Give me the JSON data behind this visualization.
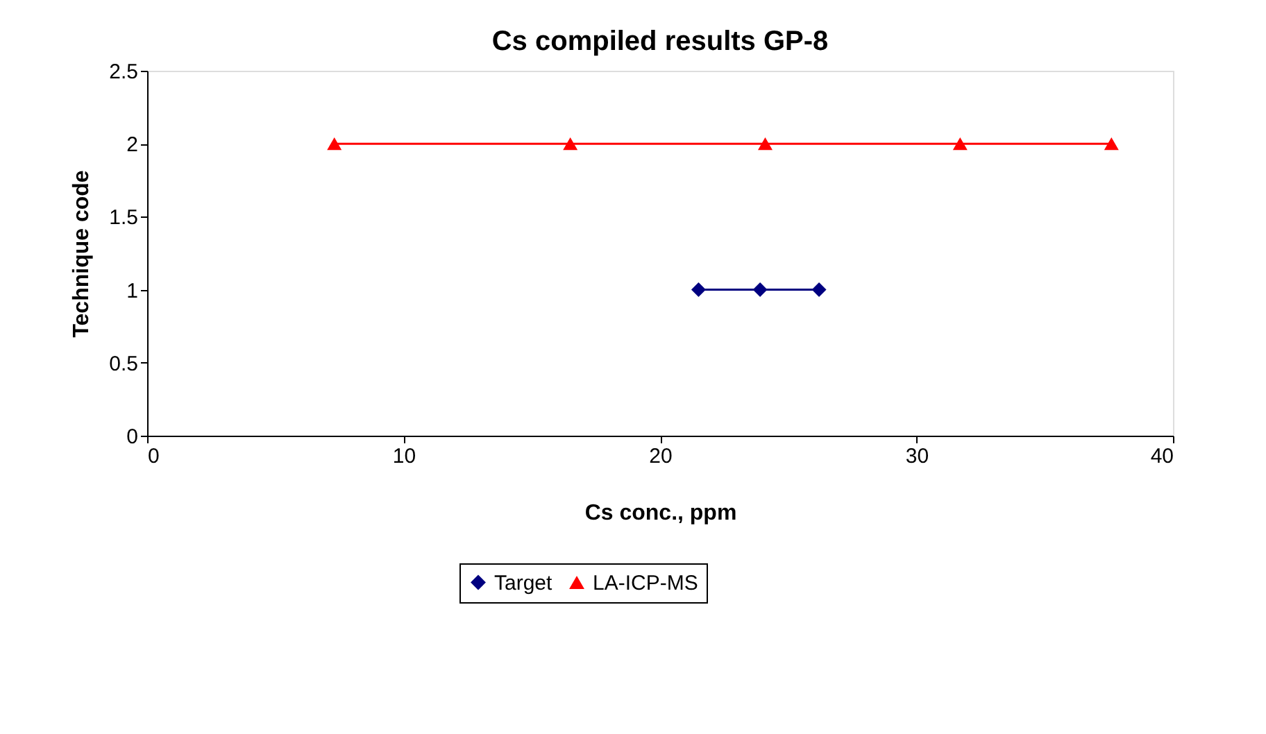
{
  "chart_data": {
    "type": "line",
    "title": "Cs compiled results GP-8",
    "xlabel": "Cs conc., ppm",
    "ylabel": "Technique code",
    "xlim": [
      0,
      40
    ],
    "xticks": [
      0,
      10,
      20,
      30,
      40
    ],
    "ylim": [
      0,
      2.5
    ],
    "yticks": [
      0,
      0.5,
      1,
      1.5,
      2,
      2.5
    ],
    "grid": false,
    "legend": "bottom",
    "series": [
      {
        "name": "Target",
        "color": "#000080",
        "marker": "diamond",
        "x": [
          21.5,
          23.9,
          26.2
        ],
        "values": [
          1,
          1,
          1
        ]
      },
      {
        "name": "LA-ICP-MS",
        "color": "#ff0000",
        "marker": "triangle",
        "x": [
          7.3,
          16.5,
          24.1,
          31.7,
          37.6
        ],
        "values": [
          2,
          2,
          2,
          2,
          2
        ]
      }
    ]
  }
}
